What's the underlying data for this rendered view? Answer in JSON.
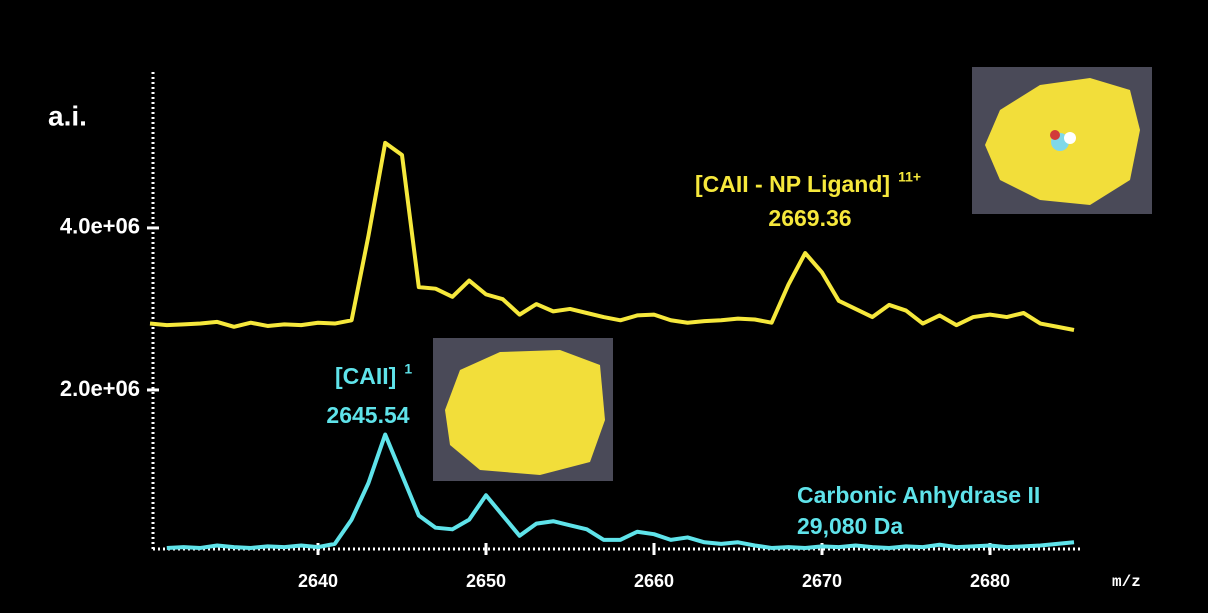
{
  "chart_data": {
    "type": "line",
    "y_label": "a.i.",
    "x_label": "m/z",
    "xlim": [
      2630,
      2685
    ],
    "xticks": [
      2640,
      2650,
      2660,
      2670,
      2680
    ],
    "ylim": [
      0,
      5900000
    ],
    "yticks": [
      {
        "value": 2000000,
        "label": "2.0e+06"
      },
      {
        "value": 4000000,
        "label": "4.0e+06"
      }
    ],
    "x": [
      2630,
      2631,
      2632,
      2633,
      2634,
      2635,
      2636,
      2637,
      2638,
      2639,
      2640,
      2641,
      2642,
      2643,
      2644,
      2645,
      2646,
      2647,
      2648,
      2649,
      2650,
      2651,
      2652,
      2653,
      2654,
      2655,
      2656,
      2657,
      2658,
      2659,
      2660,
      2661,
      2662,
      2663,
      2664,
      2665,
      2666,
      2667,
      2668,
      2669,
      2670,
      2671,
      2672,
      2673,
      2674,
      2675,
      2676,
      2677,
      2678,
      2679,
      2680,
      2681,
      2682,
      2683,
      2684,
      2685
    ],
    "series": [
      {
        "name": "[CAII - NP Ligand]",
        "color": "#f6e83c",
        "values": [
          2820000,
          2800000,
          2810000,
          2820000,
          2840000,
          2780000,
          2830000,
          2790000,
          2810000,
          2800000,
          2830000,
          2820000,
          2860000,
          3900000,
          5050000,
          4900000,
          3270000,
          3250000,
          3150000,
          3350000,
          3180000,
          3120000,
          2930000,
          3060000,
          2970000,
          3000000,
          2950000,
          2900000,
          2860000,
          2920000,
          2930000,
          2860000,
          2830000,
          2850000,
          2860000,
          2880000,
          2870000,
          2830000,
          3300000,
          3690000,
          3450000,
          3100000,
          3000000,
          2900000,
          3050000,
          2980000,
          2820000,
          2920000,
          2800000,
          2900000,
          2930000,
          2900000,
          2950000,
          2820000,
          2780000,
          2740000
        ]
      },
      {
        "name": "[CAII]",
        "color": "#5fe3ea",
        "values": [
          null,
          50000,
          60000,
          50000,
          80000,
          60000,
          50000,
          70000,
          60000,
          80000,
          60000,
          100000,
          400000,
          850000,
          1450000,
          950000,
          450000,
          300000,
          280000,
          400000,
          700000,
          450000,
          200000,
          350000,
          380000,
          330000,
          280000,
          150000,
          150000,
          250000,
          220000,
          150000,
          180000,
          120000,
          100000,
          120000,
          80000,
          50000,
          60000,
          50000,
          70000,
          60000,
          80000,
          60000,
          50000,
          70000,
          60000,
          90000,
          60000,
          70000,
          80000,
          60000,
          70000,
          80000,
          100000,
          120000
        ]
      }
    ],
    "annotations": [
      {
        "text": "[CAII - NP Ligand]",
        "sup": "11+",
        "color": "#f6e83c"
      },
      {
        "text": "2669.36",
        "color": "#f6e83c"
      },
      {
        "text": "[CAII]",
        "sup": "1",
        "color": "#5fe3ea"
      },
      {
        "text": "2645.54",
        "color": "#5fe3ea"
      },
      {
        "text": "Carbonic Anhydrase II",
        "color": "#5fe3ea"
      },
      {
        "text": "29,080 Da",
        "color": "#5fe3ea"
      }
    ]
  }
}
